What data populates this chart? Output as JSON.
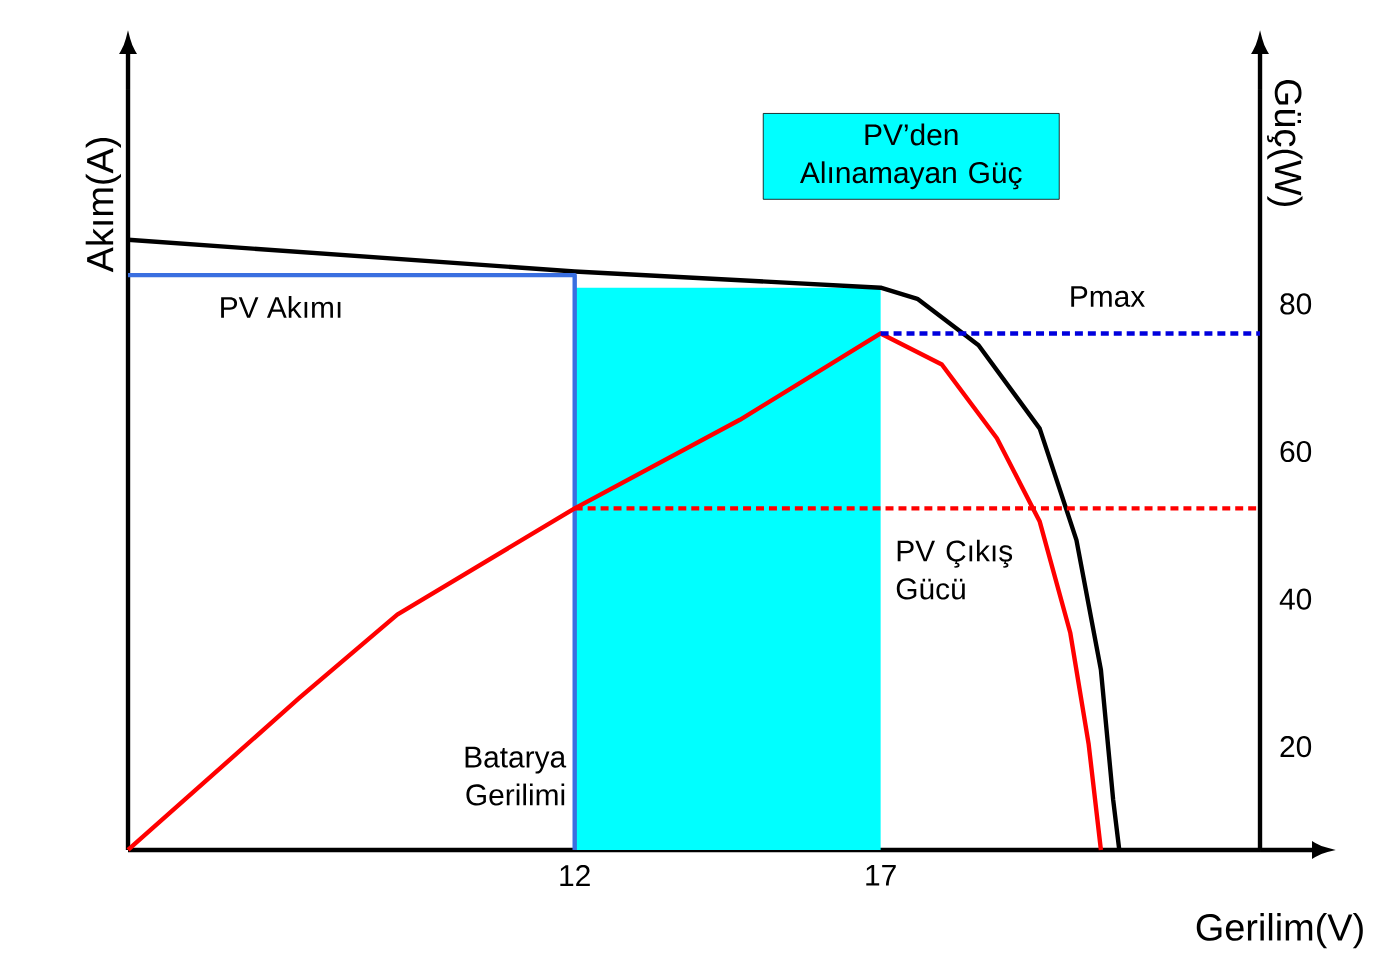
{
  "chart_data": {
    "type": "line",
    "xlabel": "Gerilim(V)",
    "ylabel": "Akım(A)",
    "y2label": "Güç(W)",
    "xlim": [
      4.7,
      23.2
    ],
    "xticks": [
      12,
      17
    ],
    "y2lim": [
      6,
      109
    ],
    "y2ticks": [
      20,
      40,
      60,
      80
    ],
    "series": [
      {
        "type": "area",
        "color": "#00ffff",
        "axis": "y2",
        "x": [
          12,
          17
        ],
        "values": [
          82.2,
          82.2
        ]
      },
      {
        "color": "#000000",
        "axis": "y2",
        "line_style": "solid",
        "x": [
          4.7,
          12,
          17,
          17.6,
          18.6,
          19.6,
          20.2,
          20.6,
          20.8,
          20.9
        ],
        "values": [
          88.7,
          84.4,
          82.2,
          80.7,
          74.4,
          63.1,
          48,
          30.4,
          12.8,
          6
        ]
      },
      {
        "color": "#3a6fe0",
        "axis": "y2",
        "line_style": "solid",
        "x": [
          4.7,
          12,
          12
        ],
        "values": [
          83.9,
          83.9,
          6
        ]
      },
      {
        "color": "#ff0000",
        "axis": "y2",
        "line_style": "solid",
        "x": [
          4.7,
          7.5,
          9.1,
          12,
          14.7,
          17,
          18.0,
          18.9,
          19.6,
          20.1,
          20.4,
          20.6
        ],
        "values": [
          6,
          26.6,
          37.9,
          52.3,
          64.3,
          76,
          71.8,
          61.8,
          50.5,
          35.4,
          20.3,
          6
        ]
      },
      {
        "color": "#ff0000",
        "axis": "y2",
        "line_style": "dashed",
        "x": [
          12,
          23.2
        ],
        "values": [
          52.3,
          52.3
        ]
      },
      {
        "color": "#0000dd",
        "axis": "y2",
        "line_style": "dashed",
        "x": [
          17,
          23.2
        ],
        "values": [
          76,
          76
        ]
      }
    ],
    "annotations": [
      "PV’den Alınamayan Güç",
      "PV Akımı",
      "Pmax",
      "PV Çıkış Gücü",
      "Batarya Gerilimi"
    ]
  }
}
